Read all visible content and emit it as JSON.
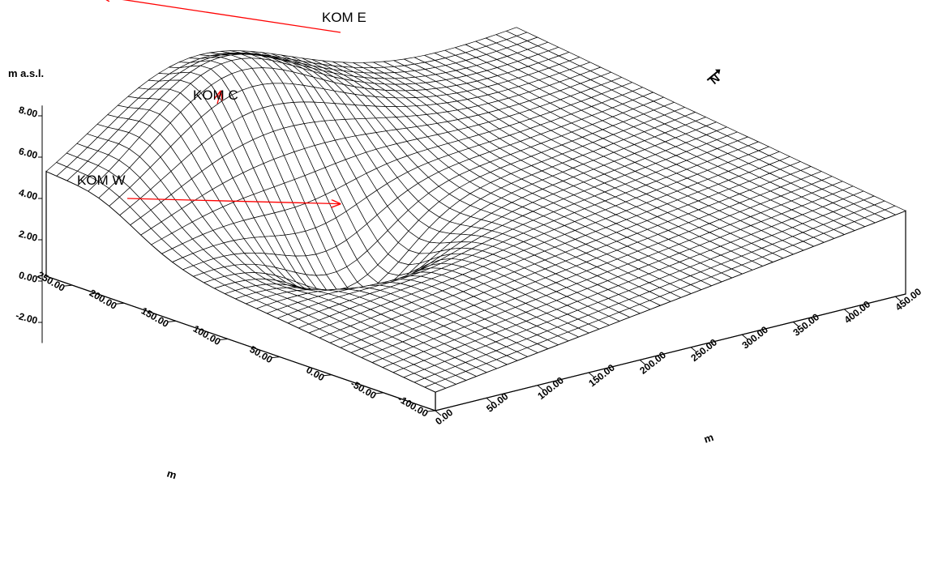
{
  "chart_data": {
    "type": "surface",
    "z_axis": {
      "label": "m a.s.l.",
      "range": [
        -3,
        8.5
      ],
      "ticks": [
        "-2.00",
        "0.00",
        "2.00",
        "4.00",
        "6.00",
        "8.00"
      ],
      "tick_values": [
        -2,
        0,
        2,
        4,
        6,
        8
      ]
    },
    "y_axis": {
      "label": "m",
      "range": [
        -100,
        275
      ],
      "ticks": [
        "-100.00",
        "-50.00",
        "0.00",
        "50.00",
        "100.00",
        "150.00",
        "200.00",
        "250.00"
      ],
      "tick_values": [
        -100,
        -50,
        0,
        50,
        100,
        150,
        200,
        250
      ]
    },
    "x_axis": {
      "label": "m",
      "range": [
        0,
        460
      ],
      "ticks": [
        "0.00",
        "50.00",
        "100.00",
        "150.00",
        "200.00",
        "250.00",
        "300.00",
        "350.00",
        "400.00",
        "450.00"
      ],
      "tick_values": [
        0,
        50,
        100,
        150,
        200,
        250,
        300,
        350,
        400,
        450
      ]
    },
    "annotations": [
      {
        "text": "KOM W",
        "target": {
          "x": 130,
          "y": 120,
          "z": 1.6
        }
      },
      {
        "text": "KOM C",
        "target": {
          "x": 125,
          "y": 230,
          "z": 5.2
        }
      },
      {
        "text": "KOM E",
        "target": {
          "x": 125,
          "y": 345,
          "z": 7.8
        }
      }
    ],
    "surface": {
      "grid": "mesh",
      "base_level": -3,
      "features": [
        {
          "name": "KOM W",
          "description": "trough / valley",
          "x": 130,
          "y": 120
        },
        {
          "name": "KOM C",
          "description": "mound",
          "x": 125,
          "y": 230
        },
        {
          "name": "KOM E",
          "description": "mound",
          "x": 125,
          "y": 345
        }
      ]
    },
    "north_arrow": "N",
    "grid": false
  }
}
